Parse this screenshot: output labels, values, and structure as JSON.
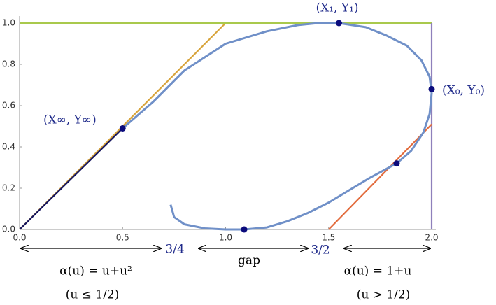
{
  "chart_data": {
    "type": "line",
    "xlim": [
      0,
      2
    ],
    "ylim": [
      0,
      1
    ],
    "xticks": [
      {
        "value": 0,
        "label": "0.0"
      },
      {
        "value": 0.5,
        "label": "0.5"
      },
      {
        "value": 1,
        "label": "1.0"
      },
      {
        "value": 1.5,
        "label": "1.5"
      },
      {
        "value": 2,
        "label": "2.0"
      }
    ],
    "yticks": [
      {
        "value": 0,
        "label": "0.0"
      },
      {
        "value": 0.2,
        "label": "0.2"
      },
      {
        "value": 0.4,
        "label": "0.4"
      },
      {
        "value": 0.6,
        "label": "0.6"
      },
      {
        "value": 0.8,
        "label": "0.8"
      },
      {
        "value": 1,
        "label": "1.0"
      }
    ],
    "series": [
      {
        "color": "#d8a43c",
        "x": [
          0,
          1.0
        ],
        "y": [
          0,
          1.0
        ]
      },
      {
        "color": "#a9c94c",
        "x": [
          0,
          2.0
        ],
        "y": [
          1.0,
          1.0
        ]
      },
      {
        "color": "#8e80bb",
        "x": [
          2.0,
          2.0
        ],
        "y": [
          0,
          1.0
        ]
      },
      {
        "color": "#e26b3c",
        "x": [
          1.5,
          2.0
        ],
        "y": [
          0,
          0.51
        ]
      },
      {
        "color": "#7090c8",
        "x": [
          0.733,
          0.75,
          0.8,
          0.9,
          1.0,
          1.09,
          1.2,
          1.3,
          1.4,
          1.5,
          1.6,
          1.7,
          1.83,
          1.9,
          1.96,
          1.99,
          2.0,
          1.99,
          1.95,
          1.88,
          1.78,
          1.68,
          1.55,
          1.45,
          1.35,
          1.2,
          1.0,
          0.8,
          0.65,
          0.5
        ],
        "y": [
          0.12,
          0.06,
          0.025,
          0.005,
          0.0,
          0.0,
          0.01,
          0.04,
          0.08,
          0.13,
          0.19,
          0.25,
          0.32,
          0.38,
          0.47,
          0.56,
          0.66,
          0.74,
          0.82,
          0.89,
          0.94,
          0.98,
          1.0,
          1.0,
          0.99,
          0.96,
          0.9,
          0.77,
          0.62,
          0.49
        ]
      },
      {
        "color": "#14145e",
        "x": [
          0,
          0.5
        ],
        "y": [
          0,
          0.49
        ]
      }
    ],
    "points": {
      "color": "#0b0b7c",
      "x": [
        0.5,
        1.55,
        2.0,
        1.83,
        1.09
      ],
      "y": [
        0.49,
        1.0,
        0.68,
        0.32,
        0.0
      ]
    },
    "annotations": [
      "(X∞, Y∞)",
      "(X₁, Y₁)",
      "(X₀, Y₀)",
      "3/4",
      "gap",
      "3/2",
      "α(u) = u+u²",
      "(u ≤ 1/2)",
      "α(u) = 1+u",
      "(u > 1/2)"
    ]
  }
}
